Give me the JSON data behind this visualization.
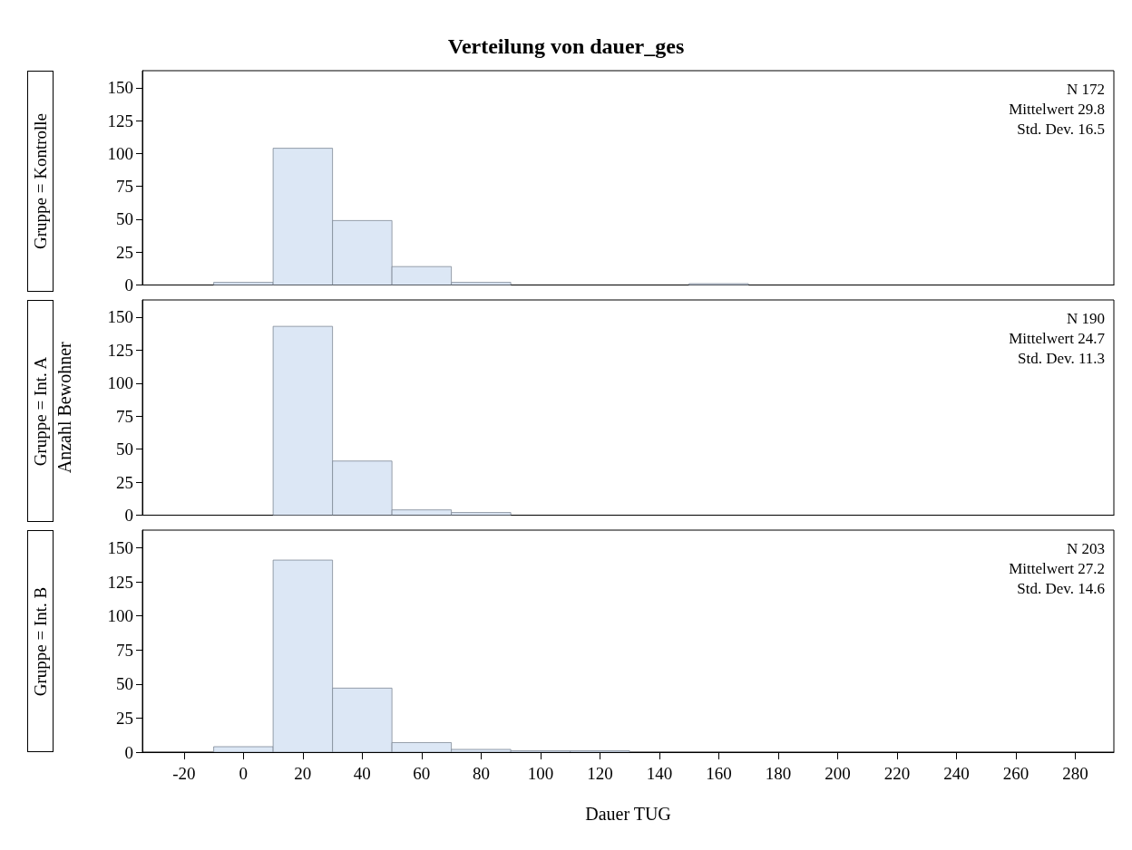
{
  "chart_data": [
    {
      "type": "histogram",
      "title": "Verteilung von dauer_ges",
      "subtitle": "Gruppe = Kontrolle",
      "bins": [
        -10,
        10,
        30,
        50,
        70,
        90,
        110,
        130,
        150,
        170
      ],
      "values": [
        2,
        104,
        49,
        14,
        2,
        0,
        0,
        0,
        1
      ],
      "color": "#dce7f5",
      "xlim": [
        -34,
        293
      ],
      "xticks": [
        -20,
        0,
        20,
        40,
        60,
        80,
        100,
        120,
        140,
        160,
        180,
        200,
        220,
        240,
        260,
        280
      ],
      "ylim": [
        0,
        163
      ],
      "yticks": [
        0,
        25,
        50,
        75,
        100,
        125,
        150
      ],
      "tick_labels": "y",
      "grid": false,
      "annotations": [
        "N 172",
        "Mittelwert 29.8",
        "Std. Dev. 16.5"
      ]
    },
    {
      "type": "histogram",
      "subtitle": "Gruppe = Int. A",
      "ylabel": "Anzahl Bewohner",
      "bins": [
        -10,
        10,
        30,
        50,
        70,
        90,
        110,
        130,
        150,
        170
      ],
      "values": [
        0,
        143,
        41,
        4,
        2,
        0,
        0,
        0,
        0
      ],
      "color": "#dce7f5",
      "xlim": [
        -34,
        293
      ],
      "xticks": [
        -20,
        0,
        20,
        40,
        60,
        80,
        100,
        120,
        140,
        160,
        180,
        200,
        220,
        240,
        260,
        280
      ],
      "ylim": [
        0,
        163
      ],
      "yticks": [
        0,
        25,
        50,
        75,
        100,
        125,
        150
      ],
      "tick_labels": "y",
      "grid": false,
      "annotations": [
        "N 190",
        "Mittelwert 24.7",
        "Std. Dev. 11.3"
      ]
    },
    {
      "type": "histogram",
      "subtitle": "Gruppe = Int. B",
      "xlabel": "Dauer TUG",
      "bins": [
        -10,
        10,
        30,
        50,
        70,
        90,
        110,
        130,
        150,
        170
      ],
      "values": [
        4,
        141,
        47,
        7,
        2,
        1,
        1,
        0,
        0
      ],
      "color": "#dce7f5",
      "xlim": [
        -34,
        293
      ],
      "xticks": [
        -20,
        0,
        20,
        40,
        60,
        80,
        100,
        120,
        140,
        160,
        180,
        200,
        220,
        240,
        260,
        280
      ],
      "ylim": [
        0,
        163
      ],
      "yticks": [
        0,
        25,
        50,
        75,
        100,
        125,
        150
      ],
      "grid": false,
      "annotations": [
        "N 203",
        "Mittelwert 27.2",
        "Std. Dev. 14.6"
      ]
    }
  ]
}
